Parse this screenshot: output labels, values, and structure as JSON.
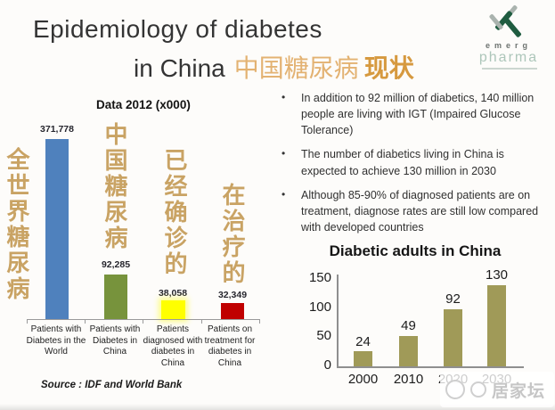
{
  "header": {
    "title_line1": "Epidemiology of diabetes",
    "title_line2_en": "in China",
    "title_cn": "中国糖尿病",
    "title_cn_suffix": "现状"
  },
  "logo": {
    "name_top": "emerg",
    "name_bottom": "pharma"
  },
  "left_chart": {
    "heading": "Data 2012 (x000)",
    "cn_labels": [
      "全世界糖尿病",
      "中国糖尿病",
      "已经确诊的",
      "在治疗的"
    ],
    "source": "Source : IDF and World Bank"
  },
  "bullets": {
    "items": [
      "In addition to 92 million of diabetics, 140 million people are living with IGT (Impaired Glucose Tolerance)",
      "The number of diabetics living in China is expected to achieve 130 million in 2030",
      "Although 85-90% of diagnosed patients are on treatment, diagnose rates are still low compared with developed countries"
    ],
    "marker": "•"
  },
  "watermark": {
    "text": "居家坛"
  },
  "chart_data": [
    {
      "type": "bar",
      "title": "Data 2012 (x000)",
      "categories": [
        "Patients with Diabetes in the World",
        "Patients with Diabetes in China",
        "Patients diagnosed with diabetes in China",
        "Patients on treatment for diabetes in China"
      ],
      "values": [
        371778,
        92285,
        38058,
        32349
      ],
      "data_labels": [
        "371,778",
        "92,285",
        "38,058",
        "32,349"
      ],
      "bar_colors": [
        "#4f81bd",
        "#77933c",
        "#ffff00",
        "#c00000"
      ],
      "cn_annotations": [
        "全世界糖尿病",
        "中国糖尿病",
        "已经确诊的",
        "在治疗的"
      ],
      "unit": "thousands (x000)",
      "source": "Source : IDF and World Bank",
      "grid": false,
      "legend": "none"
    },
    {
      "type": "bar",
      "title": "Diabetic adults in China",
      "categories": [
        "2000",
        "2010",
        "2020",
        "2030"
      ],
      "values": [
        24,
        49,
        92,
        130
      ],
      "data_labels": [
        "24",
        "49",
        "92",
        "130"
      ],
      "y_ticks": [
        "150",
        "100",
        "50",
        "0"
      ],
      "ylim": [
        0,
        150
      ],
      "bar_color": "#a09a58",
      "xlabel": "",
      "ylabel": "",
      "grid": false,
      "legend": "none"
    }
  ]
}
